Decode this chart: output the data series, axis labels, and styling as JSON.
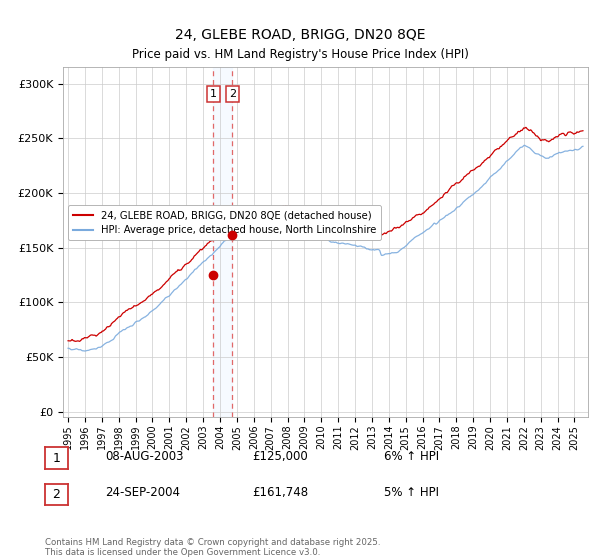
{
  "title": "24, GLEBE ROAD, BRIGG, DN20 8QE",
  "subtitle": "Price paid vs. HM Land Registry's House Price Index (HPI)",
  "ylabel_ticks": [
    "£0",
    "£50K",
    "£100K",
    "£150K",
    "£200K",
    "£250K",
    "£300K"
  ],
  "ytick_vals": [
    0,
    50000,
    100000,
    150000,
    200000,
    250000,
    300000
  ],
  "ylim": [
    -5000,
    315000
  ],
  "xlim_start": 1994.7,
  "xlim_end": 2025.8,
  "line1_color": "#cc0000",
  "line2_color": "#7aaadd",
  "marker_color": "#cc0000",
  "vline_color": "#dd4444",
  "band_color": "#ddeeff",
  "sale1_x": 2003.6,
  "sale1_y": 125000,
  "sale2_x": 2004.73,
  "sale2_y": 161748,
  "legend_label1": "24, GLEBE ROAD, BRIGG, DN20 8QE (detached house)",
  "legend_label2": "HPI: Average price, detached house, North Lincolnshire",
  "table_rows": [
    {
      "num": "1",
      "date": "08-AUG-2003",
      "price": "£125,000",
      "hpi": "6% ↑ HPI"
    },
    {
      "num": "2",
      "date": "24-SEP-2004",
      "price": "£161,748",
      "hpi": "5% ↑ HPI"
    }
  ],
  "footnote": "Contains HM Land Registry data © Crown copyright and database right 2025.\nThis data is licensed under the Open Government Licence v3.0.",
  "background_color": "#ffffff",
  "grid_color": "#cccccc"
}
